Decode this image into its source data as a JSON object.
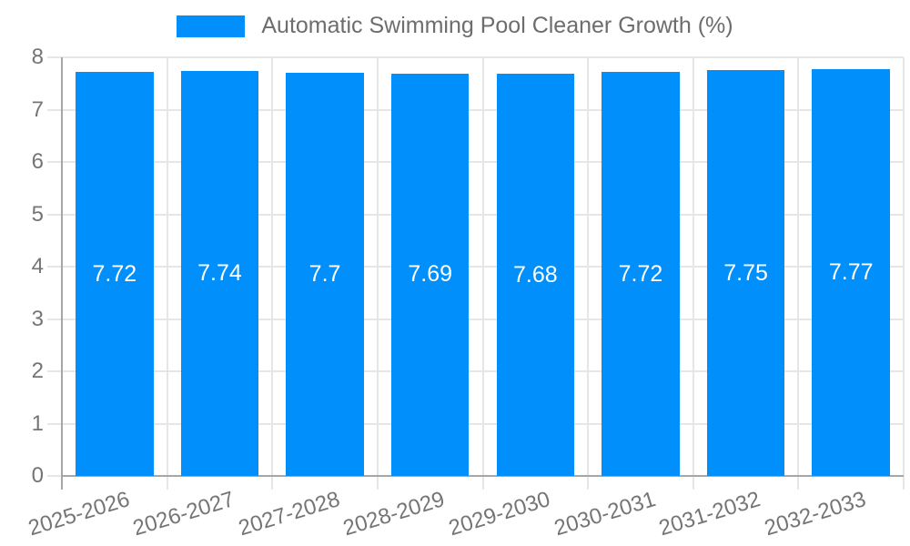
{
  "legend": {
    "label": "Automatic Swimming Pool Cleaner Growth (%)",
    "swatch_color": "#008FFB"
  },
  "chart_data": {
    "type": "bar",
    "title": "",
    "xlabel": "",
    "ylabel": "",
    "categories": [
      "2025-2026",
      "2026-2027",
      "2027-2028",
      "2028-2029",
      "2029-2030",
      "2030-2031",
      "2031-2032",
      "2032-2033"
    ],
    "series": [
      {
        "name": "Automatic Swimming Pool Cleaner Growth (%)",
        "values": [
          7.72,
          7.74,
          7.7,
          7.69,
          7.68,
          7.72,
          7.75,
          7.77
        ]
      }
    ],
    "value_labels": [
      "7.72",
      "7.74",
      "7.7",
      "7.69",
      "7.68",
      "7.72",
      "7.75",
      "7.77"
    ],
    "ylim": [
      0,
      8
    ],
    "ytick_step": 1,
    "ytick_labels": [
      "0",
      "1",
      "2",
      "3",
      "4",
      "5",
      "6",
      "7",
      "8"
    ],
    "grid": true,
    "legend_position": "top",
    "bar_color": "#008FFB",
    "value_label_color": "#FFFFFF",
    "axis_text_color": "#757575",
    "grid_color": "#E6E6E6",
    "axis_line_color": "#A6A6A6",
    "background_color": "#FFFFFF"
  }
}
